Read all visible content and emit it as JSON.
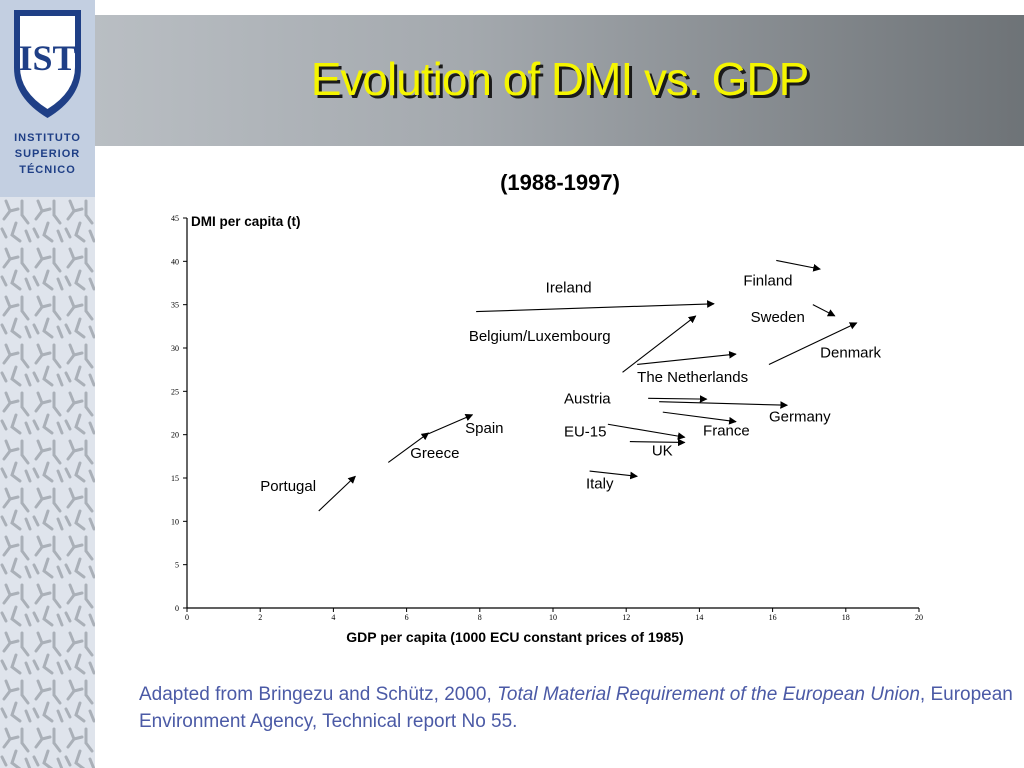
{
  "slide": {
    "title": "Evolution of DMI vs. GDP",
    "subtitle": "(1988-1997)"
  },
  "logo": {
    "emblem": "IST",
    "lines": [
      "INSTITUTO",
      "SUPERIOR",
      "TÉCNICO"
    ]
  },
  "caption": {
    "prefix": "Adapted from Bringezu and Schütz, 2000, ",
    "italic": "Total Material Requirement of the European Union",
    "suffix": ", European Environment Agency, Technical report No 55."
  },
  "colors": {
    "title_text": "#f5f500",
    "header_band_start": "#b9bec3",
    "header_band_end": "#6e7377",
    "logo_shield": "#1f3f86",
    "caption_text": "#4b5aa6"
  },
  "chart_data": {
    "type": "vector",
    "xlabel": "GDP per capita (1000 ECU constant prices of 1985)",
    "ylabel": "DMI per capita (t)",
    "xlim": [
      0,
      20
    ],
    "ylim": [
      0,
      45
    ],
    "xticks": [
      "0",
      "2",
      "4",
      "6",
      "8",
      "10",
      "12",
      "14",
      "16",
      "18",
      "20"
    ],
    "yticks": [
      "0",
      "5",
      "10",
      "15",
      "20",
      "25",
      "30",
      "35",
      "40",
      "45"
    ],
    "grid": false,
    "series": [
      {
        "name": "Portugal",
        "x0": 3.6,
        "y0": 11.2,
        "x1": 4.6,
        "y1": 15.2
      },
      {
        "name": "Greece",
        "x0": 5.5,
        "y0": 16.8,
        "x1": 6.6,
        "y1": 20.2
      },
      {
        "name": "Spain",
        "x0": 6.6,
        "y0": 20.1,
        "x1": 7.8,
        "y1": 22.3
      },
      {
        "name": "Ireland",
        "x0": 7.9,
        "y0": 34.2,
        "x1": 14.4,
        "y1": 35.1
      },
      {
        "name": "Belgium/Luxembourg",
        "x0": 11.9,
        "y0": 27.2,
        "x1": 13.9,
        "y1": 33.7
      },
      {
        "name": "The Netherlands",
        "x0": 12.3,
        "y0": 28.1,
        "x1": 15.0,
        "y1": 29.3
      },
      {
        "name": "Finland",
        "x0": 16.1,
        "y0": 40.1,
        "x1": 17.3,
        "y1": 39.1
      },
      {
        "name": "Sweden",
        "x0": 17.1,
        "y0": 35.0,
        "x1": 17.7,
        "y1": 33.7
      },
      {
        "name": "Denmark",
        "x0": 15.9,
        "y0": 28.1,
        "x1": 18.3,
        "y1": 32.9
      },
      {
        "name": "Austria",
        "x0": 12.6,
        "y0": 24.2,
        "x1": 14.2,
        "y1": 24.1
      },
      {
        "name": "Germany",
        "x0": 12.9,
        "y0": 23.8,
        "x1": 16.4,
        "y1": 23.4
      },
      {
        "name": "France",
        "x0": 13.0,
        "y0": 22.6,
        "x1": 15.0,
        "y1": 21.5
      },
      {
        "name": "EU-15",
        "x0": 11.5,
        "y0": 21.2,
        "x1": 13.6,
        "y1": 19.7
      },
      {
        "name": "UK",
        "x0": 12.1,
        "y0": 19.2,
        "x1": 13.6,
        "y1": 19.1
      },
      {
        "name": "Italy",
        "x0": 11.0,
        "y0": 15.8,
        "x1": 12.3,
        "y1": 15.2
      }
    ],
    "labels": [
      {
        "text": "Portugal",
        "x": 2.0,
        "y": 13.5
      },
      {
        "text": "Greece",
        "x": 6.1,
        "y": 17.3
      },
      {
        "text": "Spain",
        "x": 7.6,
        "y": 20.2
      },
      {
        "text": "Ireland",
        "x": 9.8,
        "y": 36.4
      },
      {
        "text": "Belgium/Luxembourg",
        "x": 7.7,
        "y": 30.8
      },
      {
        "text": "The Netherlands",
        "x": 12.3,
        "y": 26.1
      },
      {
        "text": "Finland",
        "x": 15.2,
        "y": 37.2
      },
      {
        "text": "Sweden",
        "x": 15.4,
        "y": 33.0
      },
      {
        "text": "Denmark",
        "x": 17.3,
        "y": 28.9
      },
      {
        "text": "Austria",
        "x": 10.3,
        "y": 23.6
      },
      {
        "text": "Germany",
        "x": 15.9,
        "y": 21.5
      },
      {
        "text": "France",
        "x": 14.1,
        "y": 19.9
      },
      {
        "text": "EU-15",
        "x": 10.3,
        "y": 19.8
      },
      {
        "text": "UK",
        "x": 12.7,
        "y": 17.6
      },
      {
        "text": "Italy",
        "x": 10.9,
        "y": 13.8
      }
    ]
  }
}
